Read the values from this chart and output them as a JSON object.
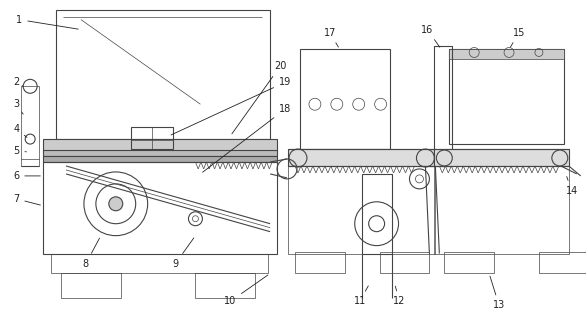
{
  "bg_color": "#ffffff",
  "lc": "#444444",
  "lw": 0.8,
  "tlw": 0.5,
  "fig_width": 5.87,
  "fig_height": 3.14,
  "dpi": 100
}
